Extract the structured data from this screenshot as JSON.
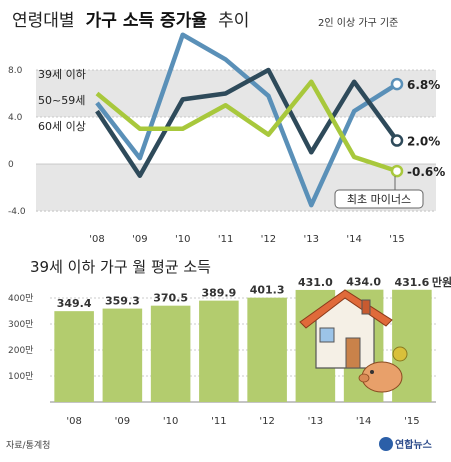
{
  "header": {
    "title_plain_1": "연령대별",
    "title_bold": "가구 소득 증가율",
    "title_plain_2": "추이",
    "subtitle": "2인 이상 가구 기준"
  },
  "colors": {
    "bg": "#ffffff",
    "band": "#e6e6e6",
    "age39": "#5a90b8",
    "age5059": "#2e4a5a",
    "age60": "#a8c83c",
    "bar": "#b3cc6e",
    "annot_border": "#666666"
  },
  "chart_data": [
    {
      "type": "line",
      "title": "연령대별 가구 소득 증가율 추이",
      "subtitle": "2인 이상 가구 기준",
      "categories": [
        "'08",
        "'09",
        "'10",
        "'11",
        "'12",
        "'13",
        "'14",
        "'15"
      ],
      "ylim": [
        -4.0,
        8.0
      ],
      "yticks": [
        "8.0",
        "4.0",
        "0",
        "-4.0"
      ],
      "grid": true,
      "series": [
        {
          "name": "39세 이하",
          "color_key": "age39",
          "values": [
            5.2,
            0.5,
            11.0,
            8.9,
            5.8,
            -3.5,
            4.5,
            6.8
          ],
          "end_label": "6.8%"
        },
        {
          "name": "50~59세",
          "color_key": "age5059",
          "values": [
            4.5,
            -1.0,
            5.5,
            6.0,
            8.0,
            1.0,
            7.0,
            2.0
          ],
          "end_label": "2.0%"
        },
        {
          "name": "60세 이상",
          "color_key": "age60",
          "values": [
            6.0,
            3.0,
            3.0,
            5.0,
            2.5,
            7.0,
            0.6,
            -0.6
          ],
          "end_label": "-0.6%"
        }
      ],
      "annotation": "최초 마이너스"
    },
    {
      "type": "bar",
      "title": "39세 이하 가구 월 평균 소득",
      "unit_suffix": "만원",
      "categories": [
        "'08",
        "'09",
        "'10",
        "'11",
        "'12",
        "'13",
        "'14",
        "'15"
      ],
      "values": [
        349.4,
        359.3,
        370.5,
        389.9,
        401.3,
        431.0,
        434.0,
        431.6
      ],
      "value_labels": [
        "349.4",
        "359.3",
        "370.5",
        "389.9",
        "401.3",
        "431.0",
        "434.0",
        "431.6"
      ],
      "ylim": [
        0,
        400
      ],
      "yticks": [
        "400만",
        "300만",
        "200만",
        "100만"
      ]
    }
  ],
  "footer": {
    "source": "자료/통계청",
    "logo": "연합뉴스"
  }
}
